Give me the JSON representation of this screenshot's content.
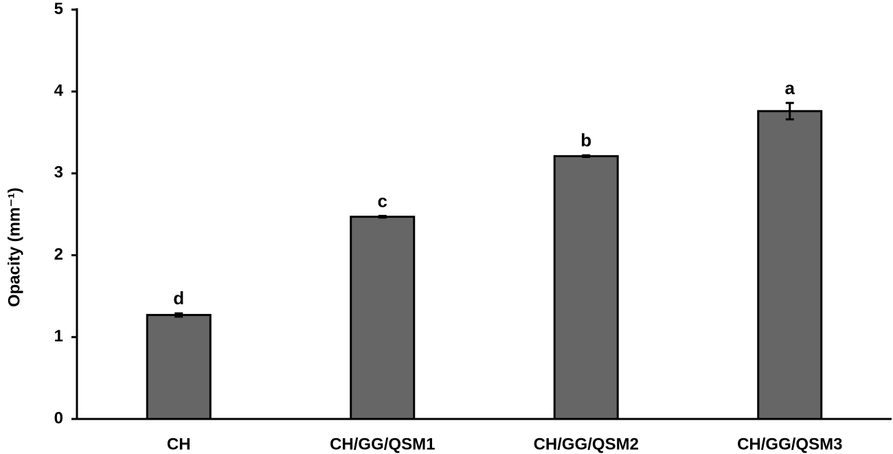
{
  "chart_data": {
    "type": "bar",
    "y_label": "Opacity (mm⁻¹)",
    "categories": [
      "CH",
      "CH/GG/QSM1",
      "CH/GG/QSM2",
      "CH/GG/QSM3"
    ],
    "values": [
      1.27,
      2.47,
      3.21,
      3.76
    ],
    "errors": [
      0.02,
      0.01,
      0.01,
      0.1
    ],
    "annotations": [
      "d",
      "c",
      "b",
      "a"
    ],
    "color": "#666666",
    "ylim": [
      0,
      5
    ],
    "yticks": [
      0,
      1,
      2,
      3,
      4,
      5
    ],
    "grid": false
  }
}
